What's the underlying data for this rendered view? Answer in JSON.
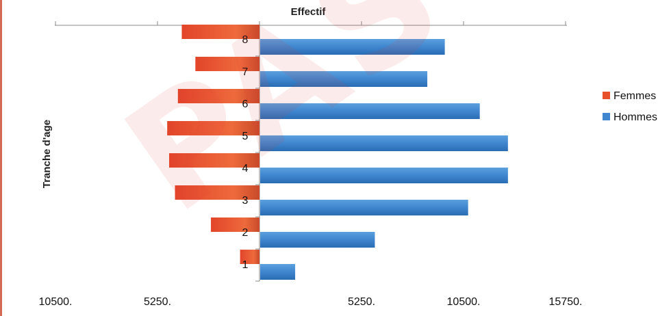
{
  "chart_data": {
    "type": "bar",
    "orientation": "horizontal",
    "title": "",
    "xlabel": "Effectif",
    "ylabel": "Tranche d'age",
    "categories": [
      "1",
      "2",
      "3",
      "4",
      "5",
      "6",
      "7",
      "8"
    ],
    "series": [
      {
        "name": "Femmes",
        "color": "#e8502c",
        "values": [
          -1000,
          -2500,
          -4350,
          -4650,
          -4750,
          -4200,
          -3300,
          -4000
        ]
      },
      {
        "name": "Hommes",
        "color": "#3f86cf",
        "values": [
          1800,
          5900,
          10700,
          12750,
          12750,
          11300,
          8600,
          9500
        ]
      }
    ],
    "xlim": [
      -10500,
      15750
    ],
    "x_tick_values": [
      -10500,
      -5250,
      0,
      5250,
      10500,
      15750
    ],
    "x_tick_labels": [
      "10500.",
      "5250.",
      "",
      "5250.",
      "10500.",
      "15750."
    ],
    "legend": "right",
    "grid": false
  },
  "watermark": "PAS REF"
}
